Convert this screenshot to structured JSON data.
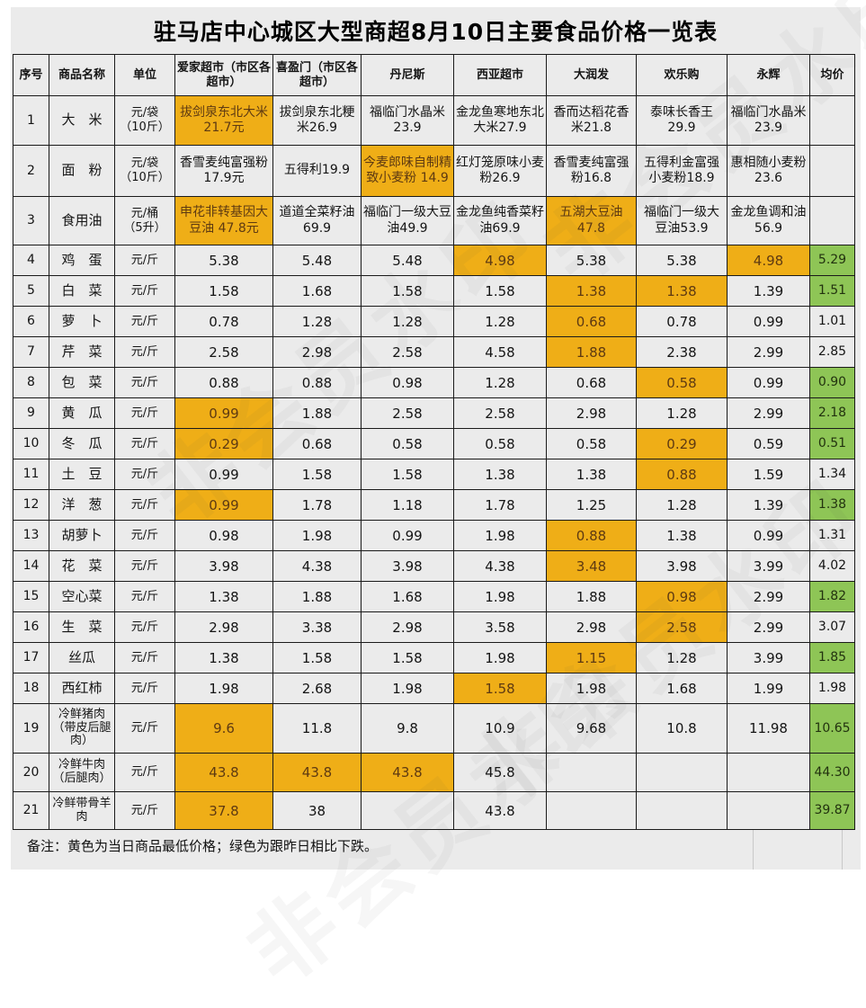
{
  "title": "驻马店中心城区大型商超8月10日主要食品价格一览表",
  "note": "备注：黄色为当日商品最低价格；绿色为跟昨日相比下跌。",
  "watermark_text": "非会员水印",
  "colors": {
    "lowest_price_bg": "#efae17",
    "lowest_price_text": "#5e3a12",
    "price_drop_bg": "#8ec556",
    "price_drop_text": "#22320f",
    "cell_bg": "#ebebeb",
    "border": "#1a1a1a"
  },
  "chart_data": {
    "type": "table",
    "columns": [
      "序号",
      "商品名称",
      "单位",
      "爱家超市（市区各超市）",
      "喜盈门（市区各超市）",
      "丹尼斯",
      "西亚超市",
      "大润发",
      "欢乐购",
      "永辉",
      "均价"
    ],
    "legend": {
      "yellow": "当日商品最低价格",
      "green": "跟昨日相比下跌"
    },
    "rows": [
      {
        "no": "1",
        "name": "大　米",
        "unit": "元/袋\n（10斤）",
        "prices": [
          {
            "t": "拔剑泉东北大米 21.7元",
            "hl": "yellow"
          },
          {
            "t": "拔剑泉东北粳米26.9"
          },
          {
            "t": "福临门水晶米 23.9"
          },
          {
            "t": "金龙鱼寒地东北大米27.9"
          },
          {
            "t": "香而达稻花香米21.8"
          },
          {
            "t": "泰味长香王 29.9"
          },
          {
            "t": "福临门水晶米23.9"
          }
        ],
        "avg": {
          "t": ""
        }
      },
      {
        "no": "2",
        "name": "面　粉",
        "unit": "元/袋\n（10斤）",
        "prices": [
          {
            "t": "香雪麦纯富强粉 17.9元"
          },
          {
            "t": "五得利19.9"
          },
          {
            "t": "今麦郎味自制精致小麦粉 14.9",
            "hl": "yellow"
          },
          {
            "t": "红灯笼原味小麦粉26.9"
          },
          {
            "t": "香雪麦纯富强粉16.8"
          },
          {
            "t": "五得利金富强小麦粉18.9"
          },
          {
            "t": "惠相随小麦粉23.6"
          }
        ],
        "avg": {
          "t": ""
        }
      },
      {
        "no": "3",
        "name": "食用油",
        "unit": "元/桶\n（5升）",
        "prices": [
          {
            "t": "申花非转基因大豆油 47.8元",
            "hl": "yellow"
          },
          {
            "t": "道道全菜籽油 69.9"
          },
          {
            "t": "福临门一级大豆油49.9"
          },
          {
            "t": "金龙鱼纯香菜籽油69.9"
          },
          {
            "t": "五湖大豆油 47.8",
            "hl": "yellow"
          },
          {
            "t": "福临门一级大豆油53.9"
          },
          {
            "t": "金龙鱼调和油56.9"
          }
        ],
        "avg": {
          "t": ""
        }
      },
      {
        "no": "4",
        "name": "鸡　蛋",
        "unit": "元/斤",
        "prices": [
          {
            "t": "5.38"
          },
          {
            "t": "5.48"
          },
          {
            "t": "5.48"
          },
          {
            "t": "4.98",
            "hl": "yellow"
          },
          {
            "t": "5.38"
          },
          {
            "t": "5.38"
          },
          {
            "t": "4.98",
            "hl": "yellow"
          }
        ],
        "avg": {
          "t": "5.29",
          "hl": "green"
        }
      },
      {
        "no": "5",
        "name": "白　菜",
        "unit": "元/斤",
        "prices": [
          {
            "t": "1.58"
          },
          {
            "t": "1.68"
          },
          {
            "t": "1.58"
          },
          {
            "t": "1.58"
          },
          {
            "t": "1.38",
            "hl": "yellow"
          },
          {
            "t": "1.38",
            "hl": "yellow"
          },
          {
            "t": "1.39"
          }
        ],
        "avg": {
          "t": "1.51",
          "hl": "green"
        }
      },
      {
        "no": "6",
        "name": "萝　卜",
        "unit": "元/斤",
        "prices": [
          {
            "t": "0.78"
          },
          {
            "t": "1.28"
          },
          {
            "t": "1.28"
          },
          {
            "t": "1.28"
          },
          {
            "t": "0.68",
            "hl": "yellow"
          },
          {
            "t": "0.78"
          },
          {
            "t": "0.99"
          }
        ],
        "avg": {
          "t": "1.01"
        }
      },
      {
        "no": "7",
        "name": "芹　菜",
        "unit": "元/斤",
        "prices": [
          {
            "t": "2.58"
          },
          {
            "t": "2.98"
          },
          {
            "t": "2.58"
          },
          {
            "t": "4.58"
          },
          {
            "t": "1.88",
            "hl": "yellow"
          },
          {
            "t": "2.38"
          },
          {
            "t": "2.99"
          }
        ],
        "avg": {
          "t": "2.85"
        }
      },
      {
        "no": "8",
        "name": "包　菜",
        "unit": "元/斤",
        "prices": [
          {
            "t": "0.88"
          },
          {
            "t": "0.88"
          },
          {
            "t": "0.98"
          },
          {
            "t": "1.28"
          },
          {
            "t": "0.68"
          },
          {
            "t": "0.58",
            "hl": "yellow"
          },
          {
            "t": "0.99"
          }
        ],
        "avg": {
          "t": "0.90",
          "hl": "green"
        }
      },
      {
        "no": "9",
        "name": "黄　瓜",
        "unit": "元/斤",
        "prices": [
          {
            "t": "0.99",
            "hl": "yellow"
          },
          {
            "t": "1.88"
          },
          {
            "t": "2.58"
          },
          {
            "t": "2.58"
          },
          {
            "t": "2.98"
          },
          {
            "t": "1.28"
          },
          {
            "t": "2.99"
          }
        ],
        "avg": {
          "t": "2.18",
          "hl": "green"
        }
      },
      {
        "no": "10",
        "name": "冬　瓜",
        "unit": "元/斤",
        "prices": [
          {
            "t": "0.29",
            "hl": "yellow"
          },
          {
            "t": "0.68"
          },
          {
            "t": "0.58"
          },
          {
            "t": "0.58"
          },
          {
            "t": "0.58"
          },
          {
            "t": "0.29",
            "hl": "yellow"
          },
          {
            "t": "0.59"
          }
        ],
        "avg": {
          "t": "0.51",
          "hl": "green"
        }
      },
      {
        "no": "11",
        "name": "土　豆",
        "unit": "元/斤",
        "prices": [
          {
            "t": "0.99"
          },
          {
            "t": "1.58"
          },
          {
            "t": "1.58"
          },
          {
            "t": "1.38"
          },
          {
            "t": "1.38"
          },
          {
            "t": "0.88",
            "hl": "yellow"
          },
          {
            "t": "1.59"
          }
        ],
        "avg": {
          "t": "1.34"
        }
      },
      {
        "no": "12",
        "name": "洋　葱",
        "unit": "元/斤",
        "prices": [
          {
            "t": "0.99",
            "hl": "yellow"
          },
          {
            "t": "1.78"
          },
          {
            "t": "1.18"
          },
          {
            "t": "1.78"
          },
          {
            "t": "1.25"
          },
          {
            "t": "1.28"
          },
          {
            "t": "1.39"
          }
        ],
        "avg": {
          "t": "1.38",
          "hl": "green"
        }
      },
      {
        "no": "13",
        "name": "胡萝卜",
        "unit": "元/斤",
        "prices": [
          {
            "t": "0.98"
          },
          {
            "t": "1.98"
          },
          {
            "t": "0.99"
          },
          {
            "t": "1.98"
          },
          {
            "t": "0.88",
            "hl": "yellow"
          },
          {
            "t": "1.38"
          },
          {
            "t": "0.99"
          }
        ],
        "avg": {
          "t": "1.31"
        }
      },
      {
        "no": "14",
        "name": "花　菜",
        "unit": "元/斤",
        "prices": [
          {
            "t": "3.98"
          },
          {
            "t": "4.38"
          },
          {
            "t": "3.98"
          },
          {
            "t": "4.38"
          },
          {
            "t": "3.48",
            "hl": "yellow"
          },
          {
            "t": "3.98"
          },
          {
            "t": "3.99"
          }
        ],
        "avg": {
          "t": "4.02"
        }
      },
      {
        "no": "15",
        "name": "空心菜",
        "unit": "元/斤",
        "prices": [
          {
            "t": "1.38"
          },
          {
            "t": "1.88"
          },
          {
            "t": "1.68"
          },
          {
            "t": "1.98"
          },
          {
            "t": "1.88"
          },
          {
            "t": "0.98",
            "hl": "yellow"
          },
          {
            "t": "2.99"
          }
        ],
        "avg": {
          "t": "1.82",
          "hl": "green"
        }
      },
      {
        "no": "16",
        "name": "生　菜",
        "unit": "元/斤",
        "prices": [
          {
            "t": "2.98"
          },
          {
            "t": "3.38"
          },
          {
            "t": "2.98"
          },
          {
            "t": "3.58"
          },
          {
            "t": "2.98"
          },
          {
            "t": "2.58",
            "hl": "yellow"
          },
          {
            "t": "2.99"
          }
        ],
        "avg": {
          "t": "3.07"
        }
      },
      {
        "no": "17",
        "name": "丝瓜",
        "unit": "元/斤",
        "prices": [
          {
            "t": "1.38"
          },
          {
            "t": "1.58"
          },
          {
            "t": "1.58"
          },
          {
            "t": "1.98"
          },
          {
            "t": "1.15",
            "hl": "yellow"
          },
          {
            "t": "1.28"
          },
          {
            "t": "3.99"
          }
        ],
        "avg": {
          "t": "1.85",
          "hl": "green"
        }
      },
      {
        "no": "18",
        "name": "西红柿",
        "unit": "元/斤",
        "prices": [
          {
            "t": "1.98"
          },
          {
            "t": "2.68"
          },
          {
            "t": "1.98"
          },
          {
            "t": "1.58",
            "hl": "yellow"
          },
          {
            "t": "1.98"
          },
          {
            "t": "1.68"
          },
          {
            "t": "1.99"
          }
        ],
        "avg": {
          "t": "1.98"
        }
      },
      {
        "no": "19",
        "name": "冷鲜猪肉（带皮后腿肉）",
        "unit": "元/斤",
        "prices": [
          {
            "t": "9.6",
            "hl": "yellow"
          },
          {
            "t": "11.8"
          },
          {
            "t": "9.8"
          },
          {
            "t": "10.9"
          },
          {
            "t": "9.68"
          },
          {
            "t": "10.8"
          },
          {
            "t": "11.98"
          }
        ],
        "avg": {
          "t": "10.65",
          "hl": "green"
        }
      },
      {
        "no": "20",
        "name": "冷鲜牛肉（后腿肉）",
        "unit": "元/斤",
        "prices": [
          {
            "t": "43.8",
            "hl": "yellow"
          },
          {
            "t": "43.8",
            "hl": "yellow"
          },
          {
            "t": "43.8",
            "hl": "yellow"
          },
          {
            "t": "45.8"
          },
          {
            "t": ""
          },
          {
            "t": ""
          },
          {
            "t": ""
          }
        ],
        "avg": {
          "t": "44.30",
          "hl": "green"
        }
      },
      {
        "no": "21",
        "name": "冷鲜带骨羊肉",
        "unit": "元/斤",
        "prices": [
          {
            "t": "37.8",
            "hl": "yellow"
          },
          {
            "t": "38"
          },
          {
            "t": ""
          },
          {
            "t": "43.8"
          },
          {
            "t": ""
          },
          {
            "t": ""
          },
          {
            "t": ""
          }
        ],
        "avg": {
          "t": "39.87",
          "hl": "green"
        }
      }
    ]
  }
}
